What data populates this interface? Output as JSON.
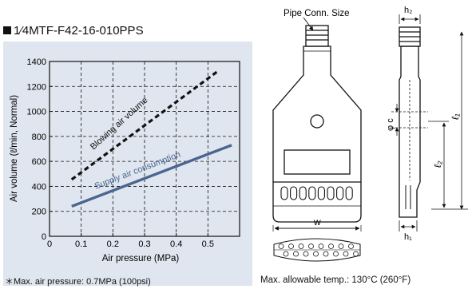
{
  "title": "1⁄4MTF-F42-16-010PPS",
  "chart_data": {
    "type": "line",
    "title": "",
    "xlabel": "Air pressure (MPa)",
    "ylabel": "Air volume (ℓ/min, Normal)",
    "xlim": [
      0,
      0.6
    ],
    "ylim": [
      0,
      1400
    ],
    "xticks": [
      0,
      0.1,
      0.2,
      0.3,
      0.4,
      0.5
    ],
    "yticks": [
      0,
      200,
      400,
      600,
      800,
      1000,
      1200,
      1400
    ],
    "grid": true,
    "series": [
      {
        "name": "Blowing air volume",
        "style": "dashed",
        "color": "#111111",
        "x": [
          0.07,
          0.53
        ],
        "y": [
          455,
          1320
        ]
      },
      {
        "name": "Supply air consumption",
        "style": "solid",
        "color": "#4a6690",
        "x": [
          0.07,
          0.575
        ],
        "y": [
          240,
          730
        ]
      }
    ]
  },
  "footnote": "＊Max. air pressure: 0.7MPa (100psi)",
  "drawing": {
    "pipe_label": "Pipe Conn. Size",
    "dims": {
      "h2": "h₂",
      "phi_c": "φ c",
      "l1": "ℓ₁",
      "l2": "ℓ₂",
      "w": "w",
      "h1": "h₁"
    }
  },
  "temp_note": "Max. allowable temp.: 130°C (260°F)"
}
